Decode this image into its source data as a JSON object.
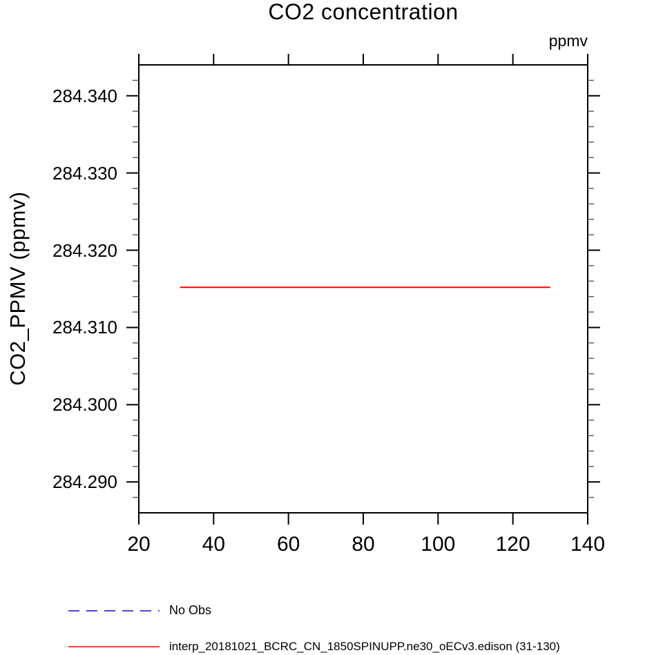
{
  "chart_data": {
    "type": "line",
    "title": "CO2 concentration",
    "unit_label_top_right": "ppmv",
    "ylabel": "CO2_PPMV (ppmv)",
    "xlabel": "",
    "xlim": [
      20,
      140
    ],
    "ylim": [
      284.286,
      284.344
    ],
    "x_ticks": [
      20,
      40,
      60,
      80,
      100,
      120,
      140
    ],
    "y_ticks": [
      284.29,
      284.3,
      284.31,
      284.32,
      284.33,
      284.34
    ],
    "y_tick_labels": [
      "284.290",
      "284.300",
      "284.310",
      "284.320",
      "284.330",
      "284.340"
    ],
    "y_minor_step": 0.002,
    "grid": false,
    "frame_color": "#000000",
    "series": [
      {
        "name": "interp_20181021_BCRC_CN_1850SPINUPP.ne30_oECv3.edison (31-130)",
        "color": "#ff0000",
        "line_style": "solid",
        "x": [
          31,
          130
        ],
        "y": [
          284.3152,
          284.3152
        ]
      }
    ],
    "legend": {
      "position": "below-left",
      "items": [
        {
          "label": "No Obs",
          "color": "#4646dc",
          "line_style": "dashed"
        },
        {
          "label": "interp_20181021_BCRC_CN_1850SPINUPP.ne30_oECv3.edison (31-130)",
          "color": "#ff3b3b",
          "line_style": "solid"
        }
      ]
    }
  }
}
